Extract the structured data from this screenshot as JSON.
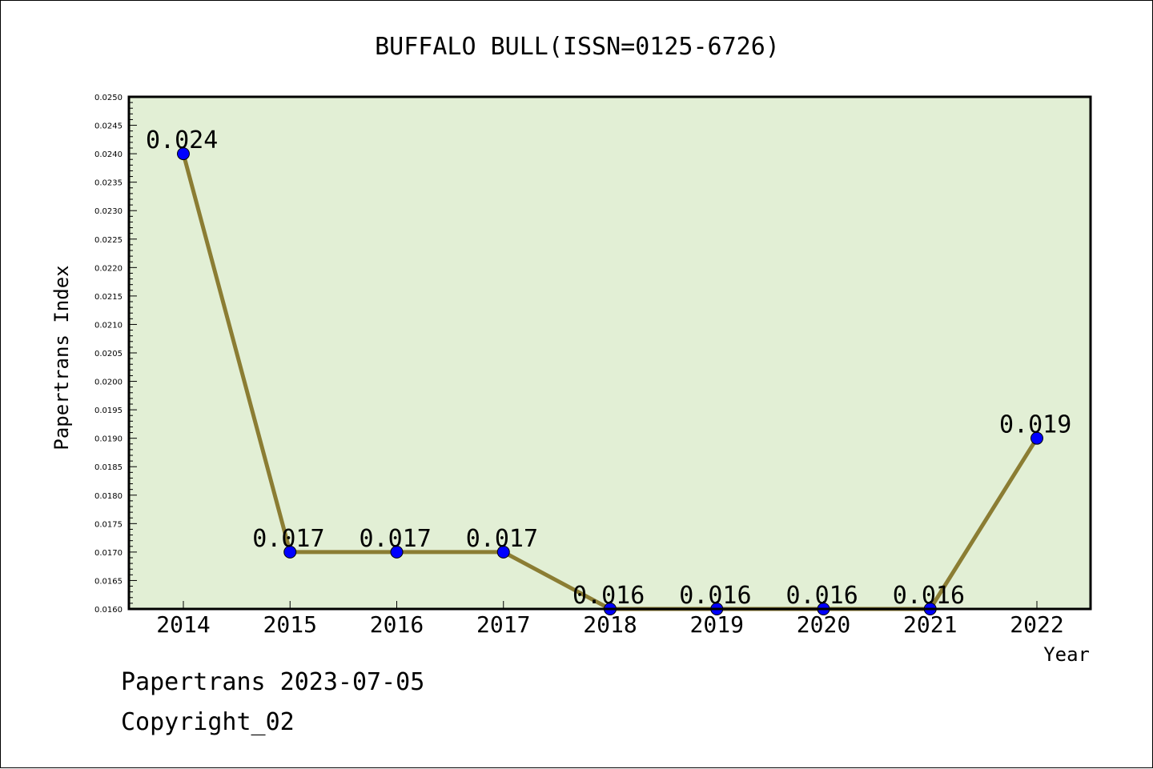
{
  "chart_data": {
    "type": "line",
    "title": "BUFFALO BULL(ISSN=0125-6726)",
    "xlabel": "Year",
    "ylabel": "Papertrans Index",
    "categories": [
      "2014",
      "2015",
      "2016",
      "2017",
      "2018",
      "2019",
      "2020",
      "2021",
      "2022"
    ],
    "series": [
      {
        "values": [
          0.024,
          0.017,
          0.017,
          0.017,
          0.016,
          0.016,
          0.016,
          0.016,
          0.019
        ],
        "data_labels": [
          "0.024",
          "0.017",
          "0.017",
          "0.017",
          "0.016",
          "0.016",
          "0.016",
          "0.016",
          "0.019"
        ]
      }
    ],
    "ylim": [
      0.016,
      0.025
    ],
    "y_ticks": [
      "0.0160",
      "0.0165",
      "0.0170",
      "0.0175",
      "0.0180",
      "0.0185",
      "0.0190",
      "0.0195",
      "0.0200",
      "0.0205",
      "0.0210",
      "0.0215",
      "0.0220",
      "0.0225",
      "0.0230",
      "0.0235",
      "0.0240",
      "0.0245",
      "0.0250"
    ],
    "grid": false,
    "colors": {
      "plot_background": "#e2efd5",
      "line": "#8b7d33",
      "marker": "#0000ff"
    }
  },
  "footer": {
    "line1": "Papertrans 2023-07-05",
    "line2": "Copyright_02"
  }
}
